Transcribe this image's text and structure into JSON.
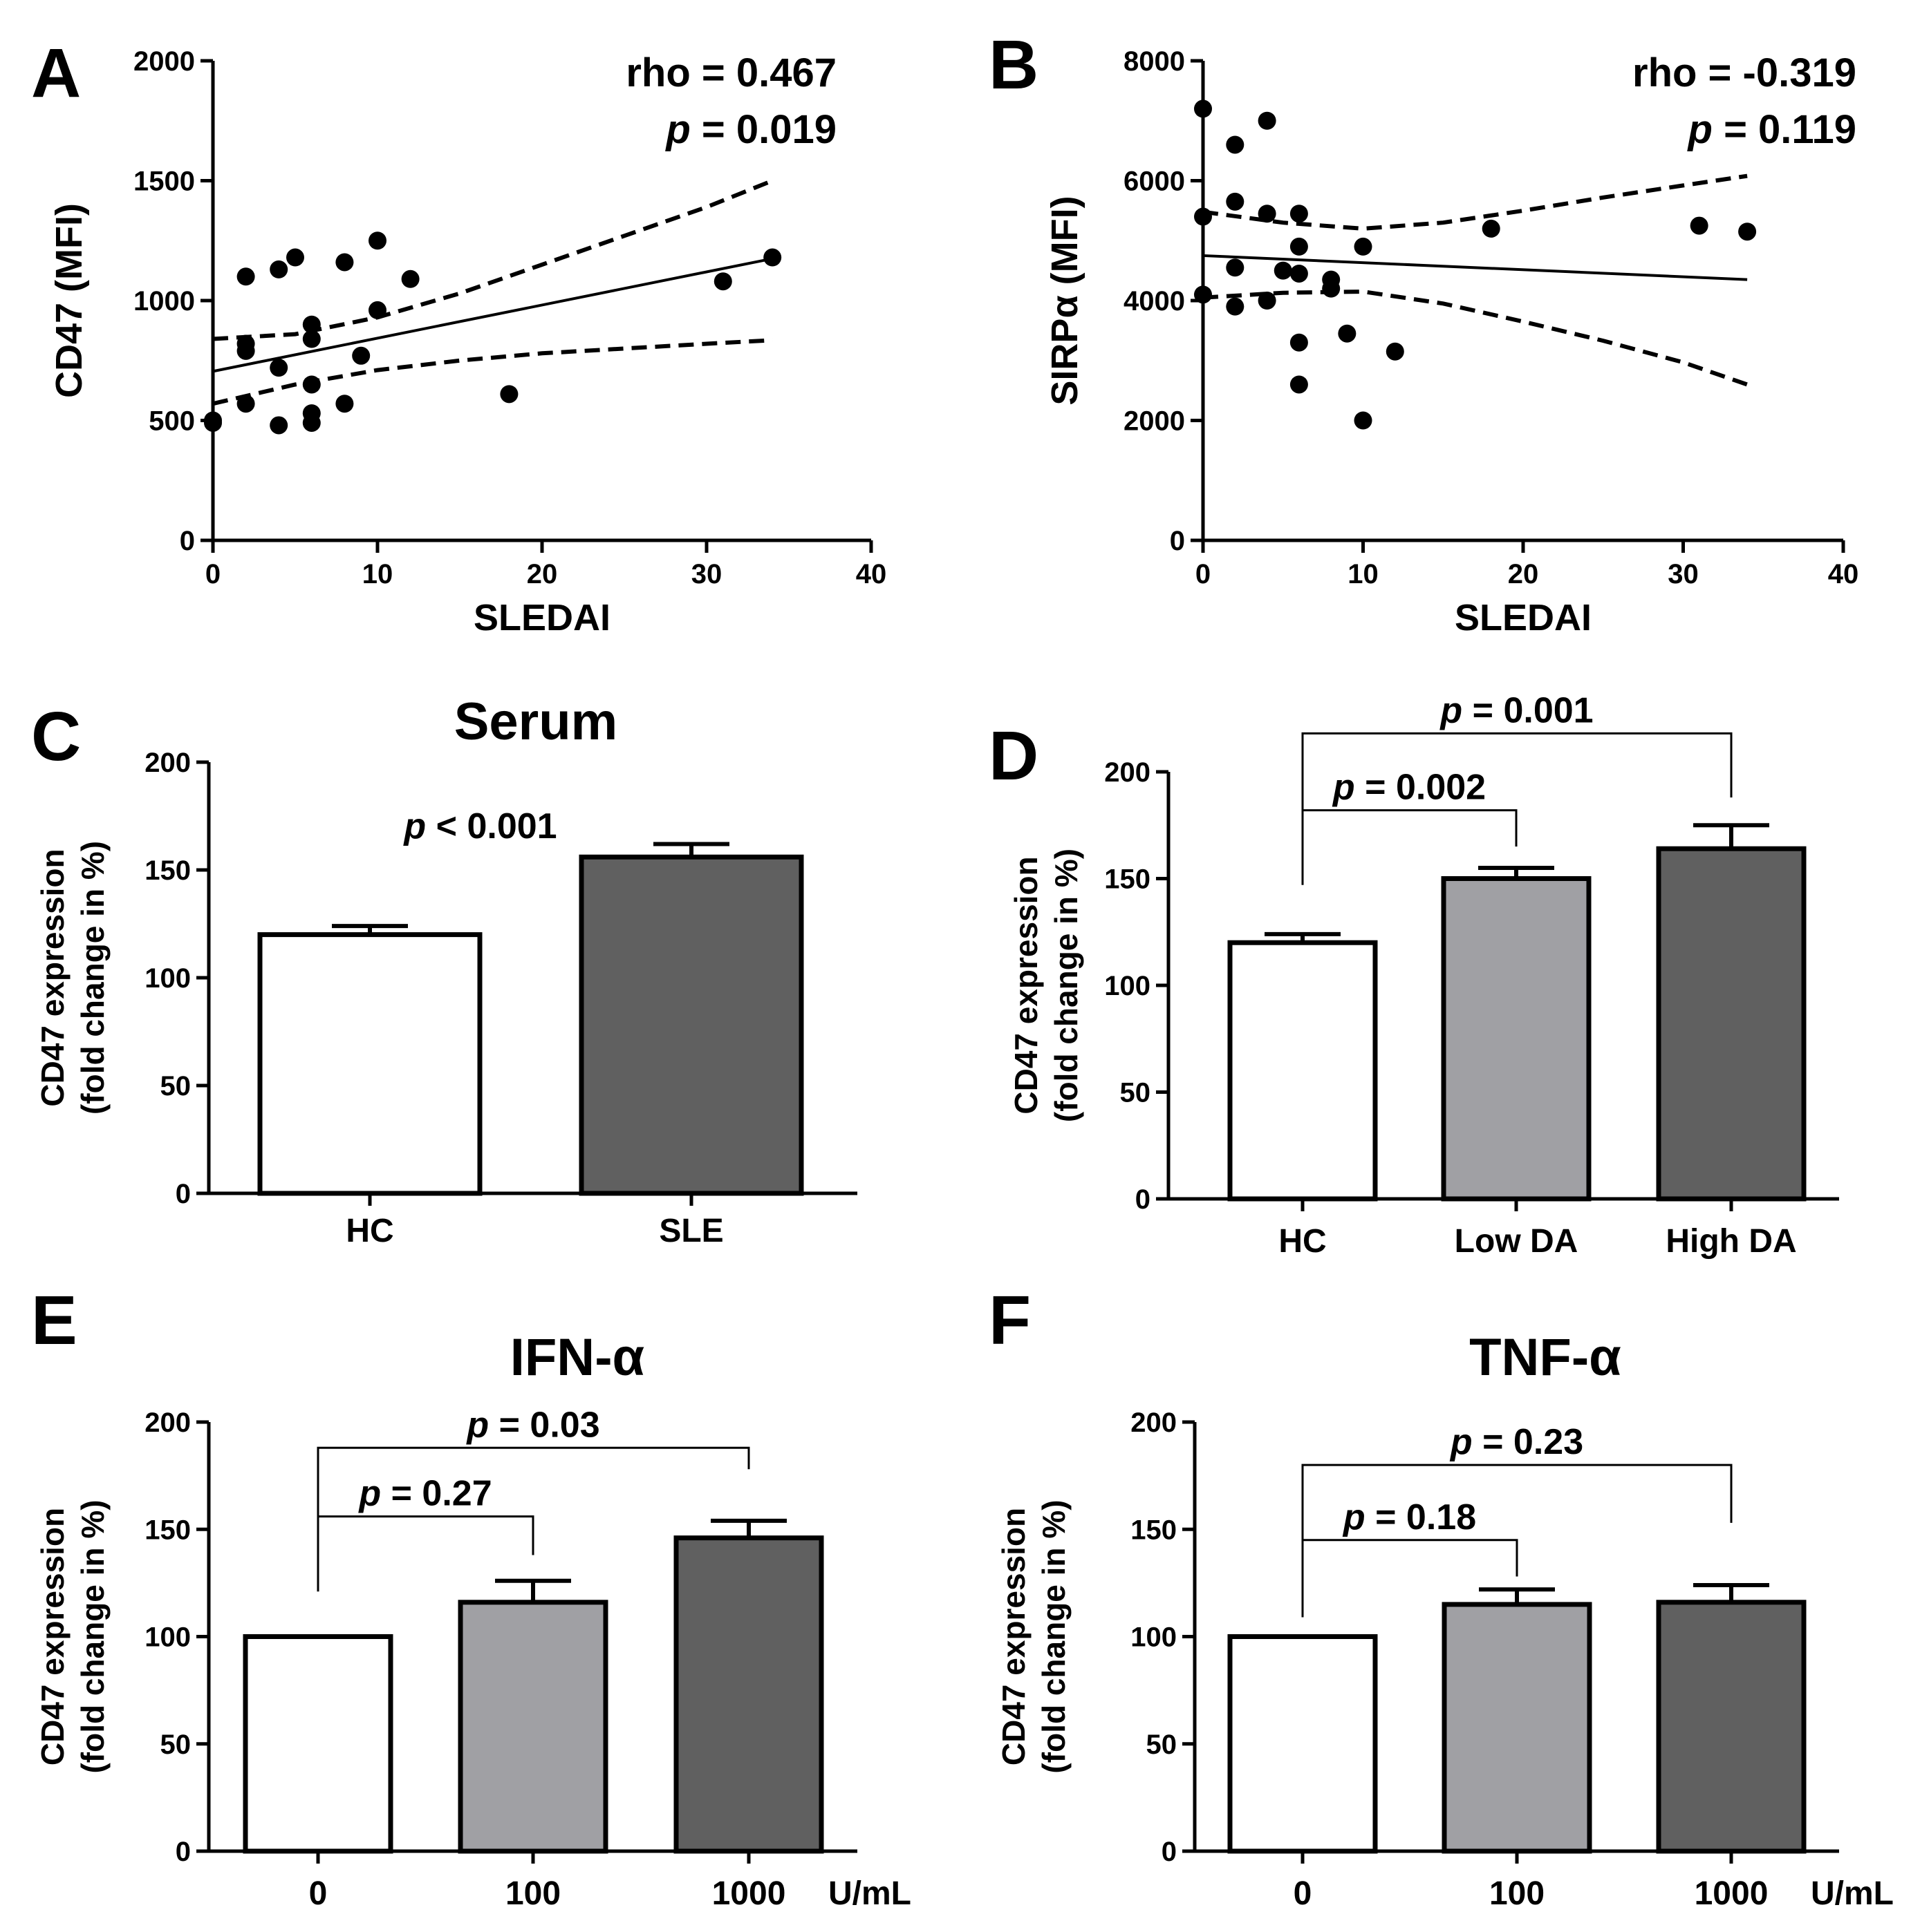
{
  "chart_data": [
    {
      "panel": "A",
      "type": "scatter",
      "xlabel": "SLEDAI",
      "ylabel": "CD47 (MFI)",
      "xlim": [
        0,
        40
      ],
      "ylim": [
        0,
        2000
      ],
      "xticks": [
        "0",
        "10",
        "20",
        "30",
        "40"
      ],
      "yticks": [
        "0",
        "500",
        "1000",
        "1500",
        "2000"
      ],
      "stat_line1": "rho = 0.467",
      "stat_p_symbol": "p",
      "stat_p_value": "= 0.019",
      "points": [
        [
          0,
          490
        ],
        [
          0,
          500
        ],
        [
          2,
          1100
        ],
        [
          2,
          820
        ],
        [
          2,
          790
        ],
        [
          2,
          570
        ],
        [
          4,
          1130
        ],
        [
          4,
          720
        ],
        [
          4,
          480
        ],
        [
          5,
          1180
        ],
        [
          6,
          900
        ],
        [
          6,
          840
        ],
        [
          6,
          650
        ],
        [
          6,
          530
        ],
        [
          6,
          490
        ],
        [
          8,
          1160
        ],
        [
          8,
          570
        ],
        [
          9,
          770
        ],
        [
          10,
          1250
        ],
        [
          10,
          960
        ],
        [
          12,
          1090
        ],
        [
          18,
          610
        ],
        [
          31,
          1080
        ],
        [
          34,
          1180
        ]
      ],
      "fit": {
        "x": [
          0,
          34
        ],
        "y": [
          705,
          1175
        ]
      },
      "ci_upper": [
        [
          0,
          840
        ],
        [
          5,
          860
        ],
        [
          10,
          930
        ],
        [
          15,
          1030
        ],
        [
          20,
          1150
        ],
        [
          25,
          1270
        ],
        [
          30,
          1390
        ],
        [
          34,
          1500
        ]
      ],
      "ci_lower": [
        [
          0,
          570
        ],
        [
          5,
          650
        ],
        [
          10,
          710
        ],
        [
          15,
          750
        ],
        [
          20,
          780
        ],
        [
          25,
          800
        ],
        [
          30,
          820
        ],
        [
          34,
          835
        ]
      ]
    },
    {
      "panel": "B",
      "type": "scatter",
      "xlabel": "SLEDAI",
      "ylabel": "SIRPα (MFI)",
      "xlim": [
        0,
        40
      ],
      "ylim": [
        0,
        8000
      ],
      "xticks": [
        "0",
        "10",
        "20",
        "30",
        "40"
      ],
      "yticks": [
        "0",
        "2000",
        "4000",
        "6000",
        "8000"
      ],
      "stat_line1": "rho = -0.319",
      "stat_p_symbol": "p",
      "stat_p_value": "= 0.119",
      "points": [
        [
          0,
          7200
        ],
        [
          0,
          5400
        ],
        [
          0,
          4100
        ],
        [
          2,
          6600
        ],
        [
          2,
          5650
        ],
        [
          2,
          4550
        ],
        [
          2,
          3900
        ],
        [
          4,
          7000
        ],
        [
          4,
          5450
        ],
        [
          4,
          4000
        ],
        [
          5,
          4500
        ],
        [
          6,
          5450
        ],
        [
          6,
          4900
        ],
        [
          6,
          4450
        ],
        [
          6,
          3300
        ],
        [
          6,
          2600
        ],
        [
          8,
          4350
        ],
        [
          8,
          4200
        ],
        [
          9,
          3450
        ],
        [
          10,
          4900
        ],
        [
          10,
          2000
        ],
        [
          12,
          3150
        ],
        [
          18,
          5200
        ],
        [
          31,
          5250
        ],
        [
          34,
          5150
        ]
      ],
      "fit": {
        "x": [
          0,
          34
        ],
        "y": [
          4750,
          4350
        ]
      },
      "ci_upper": [
        [
          0,
          5480
        ],
        [
          5,
          5300
        ],
        [
          10,
          5200
        ],
        [
          15,
          5300
        ],
        [
          20,
          5500
        ],
        [
          25,
          5720
        ],
        [
          30,
          5920
        ],
        [
          34,
          6080
        ]
      ],
      "ci_lower": [
        [
          0,
          4050
        ],
        [
          5,
          4130
        ],
        [
          10,
          4150
        ],
        [
          15,
          3950
        ],
        [
          20,
          3650
        ],
        [
          25,
          3330
        ],
        [
          30,
          2970
        ],
        [
          34,
          2600
        ]
      ]
    },
    {
      "panel": "C",
      "type": "bar",
      "title": "Serum",
      "ylabel_line1": "CD47 expression",
      "ylabel_line2": "(fold change in %)",
      "ylim": [
        0,
        200
      ],
      "yticks": [
        "0",
        "50",
        "100",
        "150",
        "200"
      ],
      "categories": [
        "HC",
        "SLE"
      ],
      "values": [
        120,
        156
      ],
      "errors": [
        4,
        6
      ],
      "fills": [
        "#ffffff",
        "#606060"
      ],
      "annotation": {
        "symbol": "p",
        "text": "< 0.001"
      }
    },
    {
      "panel": "D",
      "type": "bar",
      "title": "",
      "ylabel_line1": "CD47 expression",
      "ylabel_line2": "(fold change in %)",
      "ylim": [
        0,
        200
      ],
      "yticks": [
        "0",
        "50",
        "100",
        "150",
        "200"
      ],
      "categories": [
        "HC",
        "Low DA",
        "High DA"
      ],
      "values": [
        120,
        150,
        164
      ],
      "errors": [
        4,
        5,
        11
      ],
      "fills": [
        "#ffffff",
        "#a0a0a4",
        "#606060"
      ],
      "brackets": [
        {
          "from": 0,
          "to": 1,
          "y": 182,
          "left_drop": 147,
          "right_drop": 165,
          "symbol": "p",
          "text": "= 0.002"
        },
        {
          "from": 0,
          "to": 2,
          "y": 218,
          "left_drop": 182,
          "right_drop": 188,
          "symbol": "p",
          "text": "= 0.001"
        }
      ]
    },
    {
      "panel": "E",
      "type": "bar",
      "title": "IFN-α",
      "ylabel_line1": "CD47 expression",
      "ylabel_line2": "(fold change in %)",
      "ylim": [
        0,
        200
      ],
      "yticks": [
        "0",
        "50",
        "100",
        "150",
        "200"
      ],
      "categories": [
        "0",
        "100",
        "1000"
      ],
      "unit": "U/mL",
      "values": [
        100,
        116,
        146
      ],
      "errors": [
        0,
        10,
        8
      ],
      "fills": [
        "#ffffff",
        "#a0a0a4",
        "#606060"
      ],
      "brackets": [
        {
          "from": 0,
          "to": 1,
          "y": 156,
          "left_drop": 121,
          "right_drop": 138,
          "symbol": "p",
          "text": "= 0.27"
        },
        {
          "from": 0,
          "to": 2,
          "y": 188,
          "left_drop": 156,
          "right_drop": 178,
          "symbol": "p",
          "text": "= 0.03"
        }
      ]
    },
    {
      "panel": "F",
      "type": "bar",
      "title": "TNF-α",
      "ylabel_line1": "CD47 expression",
      "ylabel_line2": "(fold change in %)",
      "ylim": [
        0,
        200
      ],
      "yticks": [
        "0",
        "50",
        "100",
        "150",
        "200"
      ],
      "categories": [
        "0",
        "100",
        "1000"
      ],
      "unit": "U/mL",
      "values": [
        100,
        115,
        116
      ],
      "errors": [
        0,
        7,
        8
      ],
      "fills": [
        "#ffffff",
        "#a0a0a4",
        "#606060"
      ],
      "brackets": [
        {
          "from": 0,
          "to": 1,
          "y": 145,
          "left_drop": 109,
          "right_drop": 128,
          "symbol": "p",
          "text": "= 0.18"
        },
        {
          "from": 0,
          "to": 2,
          "y": 180,
          "left_drop": 145,
          "right_drop": 153,
          "symbol": "p",
          "text": "= 0.23"
        }
      ]
    }
  ]
}
